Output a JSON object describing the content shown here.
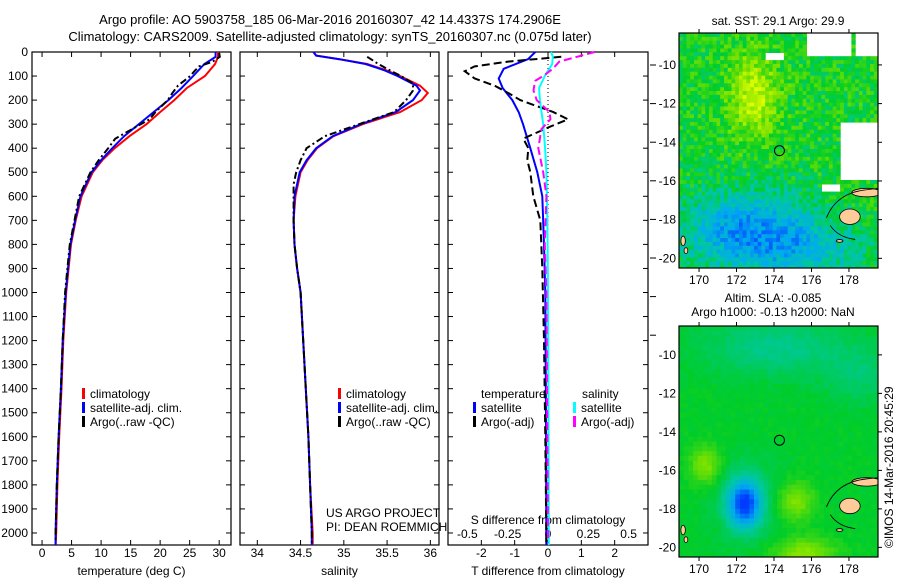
{
  "header": {
    "line1": "Argo profile: AO 5903758_185 06-Mar-2016 20160307_42 14.4337S 174.2906E",
    "line2": "Climatology: CARS2009. Satellite-adjusted climatology: synTS_20160307.nc (0.075d later)"
  },
  "credit": "©IMOS 14-Mar-2016 20:45:29",
  "project": {
    "line1": "US ARGO PROJECT",
    "line2": "PI: DEAN ROEMMICH"
  },
  "colors": {
    "climatology": "#ff0000",
    "satellite": "#0000ff",
    "argo": "#000000",
    "sal_satellite": "#00ffff",
    "sal_argo": "#ff00ff",
    "land": "#ffcc99"
  },
  "chart_data": [
    {
      "type": "line",
      "id": "temperature",
      "xlabel": "temperature (deg C)",
      "ylabel": "",
      "xlim": [
        -1.7,
        32
      ],
      "ylim": [
        2050,
        0
      ],
      "xticks": [
        "0",
        "5",
        "10",
        "15",
        "20",
        "25",
        "30"
      ],
      "xtick_values": [
        0,
        5,
        10,
        15,
        20,
        25,
        30
      ],
      "yticks": [
        "0",
        "100",
        "200",
        "300",
        "400",
        "500",
        "600",
        "700",
        "800",
        "900",
        "1000",
        "1100",
        "1200",
        "1300",
        "1400",
        "1500",
        "1600",
        "1700",
        "1800",
        "1900",
        "2000"
      ],
      "ytick_values": [
        0,
        100,
        200,
        300,
        400,
        500,
        600,
        700,
        800,
        900,
        1000,
        1100,
        1200,
        1300,
        1400,
        1500,
        1600,
        1700,
        1800,
        1900,
        2000
      ],
      "legend": [
        "climatology",
        "satellite-adj. clim.",
        "Argo(..raw -QC)"
      ],
      "series": [
        {
          "name": "climatology",
          "depth": [
            0,
            20,
            50,
            100,
            150,
            200,
            250,
            300,
            350,
            400,
            450,
            500,
            600,
            700,
            800,
            900,
            1000,
            1200,
            1400,
            1600,
            1800,
            2000,
            2050
          ],
          "values": [
            29.8,
            29.8,
            29.3,
            27.6,
            24.5,
            22.4,
            20.0,
            17.7,
            14.8,
            12.3,
            10.2,
            8.6,
            6.7,
            5.7,
            4.9,
            4.5,
            4.1,
            3.6,
            3.3,
            2.9,
            2.6,
            2.4,
            2.3
          ]
        },
        {
          "name": "satellite-adj. clim.",
          "depth": [
            0,
            20,
            50,
            100,
            150,
            200,
            250,
            300,
            350,
            400,
            450,
            500,
            600,
            700,
            800,
            900,
            1000,
            1200,
            1400,
            1600,
            1800,
            2000,
            2050
          ],
          "values": [
            29.4,
            29.4,
            27.5,
            25.6,
            23.6,
            21.4,
            18.9,
            16.4,
            13.9,
            11.9,
            10.0,
            8.4,
            6.5,
            5.6,
            4.8,
            4.4,
            4.0,
            3.5,
            3.2,
            2.8,
            2.5,
            2.3,
            2.3
          ]
        },
        {
          "name": "Argo(..raw -QC)",
          "depth": [
            5,
            20,
            40,
            60,
            80,
            100,
            140,
            170,
            200,
            250,
            280,
            310,
            360,
            400,
            450,
            500,
            600,
            700,
            800,
            900,
            1000,
            1200,
            1400,
            1600,
            1800,
            2000,
            2040
          ],
          "values": [
            30.0,
            30.1,
            28.9,
            26.6,
            25.8,
            25.1,
            23.0,
            22.1,
            21.3,
            19.2,
            18.2,
            16.0,
            12.4,
            11.2,
            9.6,
            8.2,
            6.3,
            5.5,
            4.7,
            4.3,
            3.9,
            3.5,
            3.2,
            2.8,
            2.5,
            2.3,
            2.3
          ]
        }
      ]
    },
    {
      "type": "line",
      "id": "salinity",
      "xlabel": "salinity",
      "xlim": [
        33.8,
        36.1
      ],
      "ylim": [
        2050,
        0
      ],
      "xticks": [
        "34",
        "34.5",
        "35",
        "35.5",
        "36"
      ],
      "xtick_values": [
        34,
        34.5,
        35,
        35.5,
        36
      ],
      "legend": [
        "climatology",
        "satellite-adj. clim.",
        "Argo(..raw -QC)"
      ],
      "series": [
        {
          "name": "climatology",
          "depth": [
            0,
            15,
            30,
            50,
            75,
            100,
            140,
            170,
            200,
            250,
            300,
            350,
            400,
            450,
            500,
            600,
            700,
            800,
            900,
            1000,
            1200,
            1400,
            1600,
            1800,
            2000,
            2050
          ],
          "values": [
            34.65,
            34.68,
            34.95,
            35.27,
            35.48,
            35.65,
            35.88,
            35.97,
            35.9,
            35.65,
            35.22,
            34.88,
            34.69,
            34.58,
            34.5,
            34.44,
            34.42,
            34.43,
            34.46,
            34.5,
            34.53,
            34.56,
            34.59,
            34.61,
            34.64,
            34.64
          ]
        },
        {
          "name": "satellite-adj. clim.",
          "depth": [
            0,
            15,
            30,
            50,
            75,
            100,
            140,
            160,
            200,
            250,
            300,
            350,
            400,
            450,
            500,
            600,
            700,
            800,
            900,
            1000,
            1200,
            1400,
            1600,
            1800,
            2000,
            2050
          ],
          "values": [
            34.65,
            34.68,
            34.95,
            35.25,
            35.46,
            35.62,
            35.84,
            35.88,
            35.8,
            35.6,
            35.2,
            34.87,
            34.68,
            34.57,
            34.49,
            34.43,
            34.42,
            34.43,
            34.46,
            34.5,
            34.53,
            34.56,
            34.59,
            34.61,
            34.63,
            34.63
          ]
        },
        {
          "name": "Argo(..raw -QC)",
          "depth": [
            20,
            50,
            80,
            100,
            130,
            160,
            200,
            250,
            300,
            350,
            400,
            450,
            500,
            550,
            600,
            700,
            800,
            900,
            1000,
            1200,
            1400,
            1600,
            1800,
            2000,
            2040
          ],
          "values": [
            35.27,
            35.4,
            35.55,
            35.66,
            35.8,
            35.8,
            35.72,
            35.58,
            35.18,
            34.78,
            34.57,
            34.5,
            34.45,
            34.42,
            34.42,
            34.42,
            34.43,
            34.46,
            34.5,
            34.53,
            34.56,
            34.59,
            34.61,
            34.63,
            34.63
          ]
        }
      ]
    },
    {
      "type": "line",
      "id": "difference",
      "xlabel": "T difference from climatology",
      "x2label": "S difference from climatology",
      "xlim": [
        -3,
        3
      ],
      "x2lim": [
        -0.62,
        0.62
      ],
      "ylim": [
        2050,
        0
      ],
      "xticks": [
        "-2",
        "-1",
        "0",
        "1",
        "2"
      ],
      "xtick_values": [
        -2,
        -1,
        0,
        1,
        2
      ],
      "x2ticks": [
        "-0.5",
        "-0.25",
        "0",
        "0.25",
        "0.5"
      ],
      "x2tick_values": [
        -0.5,
        -0.25,
        0,
        0.25,
        0.5
      ],
      "legend_titles": [
        "temperature",
        "salinity"
      ],
      "legend": [
        "satellite",
        "Argo(-adj)",
        "satellite",
        "Argo(-adj)"
      ],
      "series": [
        {
          "name": "T satellite",
          "axis": "T",
          "depth": [
            0,
            30,
            70,
            110,
            150,
            200,
            250,
            300,
            400,
            500,
            600,
            800,
            1000,
            1500,
            2000,
            2050
          ],
          "values": [
            -0.38,
            -0.6,
            -1.33,
            -1.48,
            -1.36,
            -1.07,
            -0.88,
            -0.75,
            -0.53,
            -0.32,
            -0.17,
            -0.12,
            -0.08,
            -0.06,
            -0.05,
            -0.05
          ]
        },
        {
          "name": "T Argo(-adj)",
          "axis": "T",
          "depth": [
            20,
            40,
            60,
            80,
            110,
            140,
            170,
            200,
            250,
            280,
            310,
            360,
            400,
            450,
            500,
            600,
            700,
            900,
            1200,
            1600,
            2000,
            2040
          ],
          "values": [
            0.4,
            -1.2,
            -2.2,
            -2.5,
            -2.2,
            -1.6,
            -1.2,
            -0.83,
            0.16,
            0.6,
            0.07,
            -0.74,
            -0.59,
            -0.62,
            -0.53,
            -0.44,
            -0.23,
            -0.17,
            -0.12,
            -0.08,
            -0.05,
            -0.05
          ]
        },
        {
          "name": "S satellite",
          "axis": "S",
          "depth": [
            0,
            20,
            50,
            100,
            150,
            200,
            300,
            400,
            500,
            700,
            1000,
            1500,
            2000,
            2050
          ],
          "values": [
            0.02,
            0.03,
            0.026,
            -0.02,
            -0.055,
            -0.05,
            -0.03,
            -0.018,
            -0.01,
            -0.004,
            0.0,
            0.003,
            0.005,
            0.005
          ]
        },
        {
          "name": "S Argo(-adj)",
          "axis": "S",
          "depth": [
            0,
            20,
            40,
            70,
            100,
            120,
            160,
            200,
            250,
            280,
            320,
            400,
            500,
            600,
            800,
            1000,
            1500,
            2000,
            2040
          ],
          "values": [
            0.29,
            0.18,
            0.07,
            0.03,
            -0.03,
            -0.08,
            -0.09,
            -0.07,
            0.01,
            0.015,
            -0.04,
            -0.06,
            -0.03,
            -0.01,
            -0.02,
            -0.01,
            -0.005,
            0.0,
            0.0
          ]
        }
      ]
    },
    {
      "type": "heatmap",
      "id": "sst_map",
      "title": "sat. SST: 29.1  Argo: 29.9",
      "xlim": [
        168.93,
        179.55
      ],
      "ylim": [
        -20.5,
        -8.35
      ],
      "xticks": [
        "170",
        "172",
        "174",
        "176",
        "178"
      ],
      "xtick_values": [
        170,
        172,
        174,
        176,
        178
      ],
      "yticks": [
        "-10",
        "-12",
        "-14",
        "-16",
        "-18",
        "-20"
      ],
      "ytick_values": [
        -10,
        -12,
        -14,
        -16,
        -18,
        -20
      ],
      "marker": {
        "lon": 174.2906,
        "lat": -14.4337
      }
    },
    {
      "type": "heatmap",
      "id": "sla_map",
      "title": "Altim. SLA: -0.085",
      "subtitle": "Argo h1000: -0.13 h2000: NaN",
      "xlim": [
        168.93,
        179.55
      ],
      "ylim": [
        -20.5,
        -8.5
      ],
      "xticks": [
        "170",
        "172",
        "174",
        "176",
        "178"
      ],
      "xtick_values": [
        170,
        172,
        174,
        176,
        178
      ],
      "yticks": [
        "-10",
        "-12",
        "-14",
        "-16",
        "-18",
        "-20"
      ],
      "ytick_values": [
        -10,
        -12,
        -14,
        -16,
        -18,
        -20
      ],
      "marker": {
        "lon": 174.2906,
        "lat": -14.4337
      }
    }
  ]
}
